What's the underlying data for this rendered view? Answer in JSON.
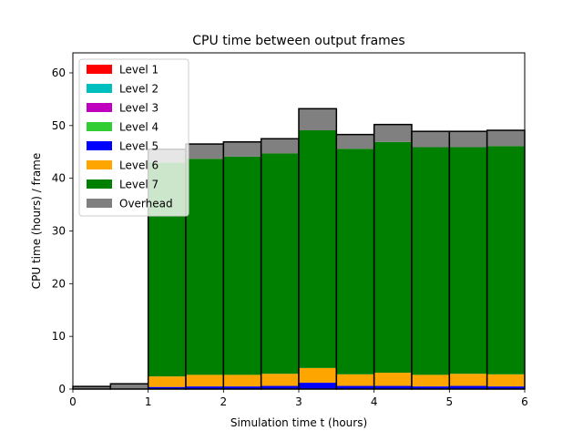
{
  "chart_data": {
    "type": "bar",
    "stacked": true,
    "title": "CPU time between output frames",
    "xlabel": "Simulation time t (hours)",
    "ylabel": "CPU time (hours) / frame",
    "xlim": [
      0,
      6
    ],
    "ylim": [
      0,
      63.8
    ],
    "xticks": [
      0,
      1,
      2,
      3,
      4,
      5,
      6
    ],
    "yticks": [
      0,
      10,
      20,
      30,
      40,
      50,
      60
    ],
    "grid": false,
    "legend_position": "top-left",
    "bins": [
      [
        0,
        0.5
      ],
      [
        0.5,
        1
      ],
      [
        1,
        1.5
      ],
      [
        1.5,
        2
      ],
      [
        2,
        2.5
      ],
      [
        2.5,
        3
      ],
      [
        3,
        3.5
      ],
      [
        3.5,
        4
      ],
      [
        4,
        4.5
      ],
      [
        4.5,
        5
      ],
      [
        5,
        5.5
      ],
      [
        5.5,
        6
      ]
    ],
    "series": [
      {
        "name": "Level 1",
        "color": "#ff0000",
        "values": [
          0,
          0,
          0,
          0,
          0,
          0,
          0,
          0,
          0,
          0,
          0,
          0
        ]
      },
      {
        "name": "Level 2",
        "color": "#00bfbf",
        "values": [
          0,
          0,
          0,
          0,
          0,
          0,
          0,
          0,
          0,
          0,
          0,
          0
        ]
      },
      {
        "name": "Level 3",
        "color": "#bf00bf",
        "values": [
          0,
          0,
          0,
          0,
          0,
          0,
          0,
          0,
          0,
          0,
          0,
          0
        ]
      },
      {
        "name": "Level 4",
        "color": "#32cd32",
        "values": [
          0,
          0,
          0,
          0,
          0,
          0,
          0,
          0,
          0,
          0,
          0,
          0
        ]
      },
      {
        "name": "Level 5",
        "color": "#0000ff",
        "values": [
          0,
          0,
          0.4,
          0.5,
          0.5,
          0.6,
          1.2,
          0.6,
          0.6,
          0.5,
          0.6,
          0.5
        ]
      },
      {
        "name": "Level 6",
        "color": "#ffa500",
        "values": [
          0,
          0,
          2.0,
          2.2,
          2.2,
          2.3,
          2.8,
          2.2,
          2.5,
          2.2,
          2.3,
          2.3
        ]
      },
      {
        "name": "Level 7",
        "color": "#008000",
        "values": [
          0,
          0,
          40.6,
          41.0,
          41.4,
          41.8,
          45.1,
          42.8,
          43.8,
          43.2,
          43.0,
          43.3
        ]
      },
      {
        "name": "Overhead",
        "color": "#808080",
        "values": [
          0.5,
          1.0,
          2.5,
          2.8,
          2.8,
          2.8,
          4.1,
          2.7,
          3.3,
          3.0,
          3.0,
          3.0
        ]
      }
    ]
  }
}
